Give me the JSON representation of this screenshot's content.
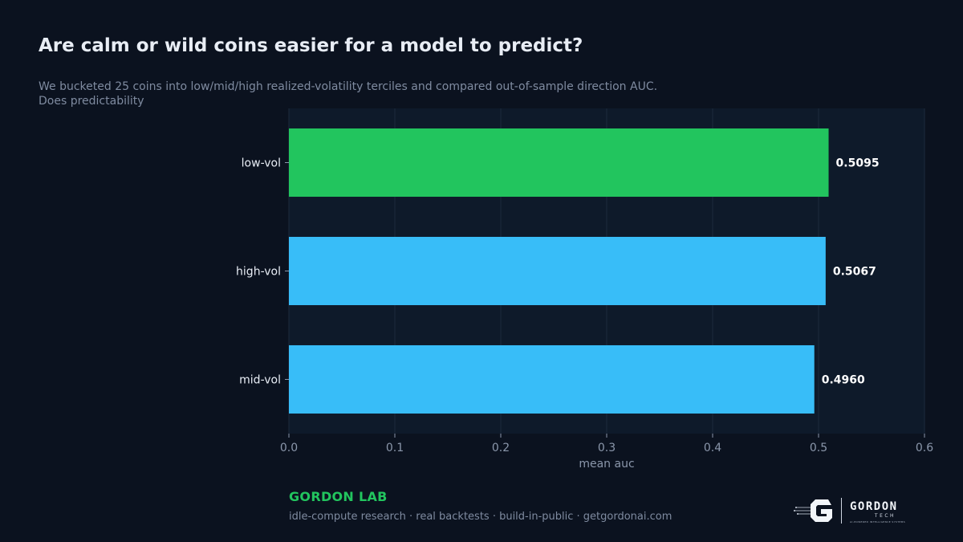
{
  "header": {
    "title": "Are calm or wild coins easier for a model to predict?",
    "subtitle_line1": "We bucketed 25 coins into low/mid/high realized-volatility terciles and compared out-of-sample direction AUC.",
    "subtitle_line2": "Does predictability"
  },
  "chart_data": {
    "type": "bar",
    "orientation": "horizontal",
    "categories": [
      "low-vol",
      "high-vol",
      "mid-vol"
    ],
    "values": [
      0.5095,
      0.5067,
      0.496
    ],
    "value_labels": [
      "0.5095",
      "0.5067",
      "0.4960"
    ],
    "bar_colors": [
      "#22c55e",
      "#38bdf8",
      "#38bdf8"
    ],
    "xlabel": "mean auc",
    "ylabel": "",
    "xlim": [
      0,
      0.6
    ],
    "xticks": [
      0.0,
      0.1,
      0.2,
      0.3,
      0.4,
      0.5,
      0.6
    ],
    "xtick_labels": [
      "0.0",
      "0.1",
      "0.2",
      "0.3",
      "0.4",
      "0.5",
      "0.6"
    ],
    "grid": true,
    "colors": {
      "plot_bg": "#0e1a2a",
      "grid": "#1c2a3c",
      "tick_text": "#8b97ab",
      "category_text": "#e8edf5",
      "value_text": "#ffffff"
    }
  },
  "footer": {
    "brand": "GORDON LAB",
    "tagline": "idle-compute research · real backtests · build-in-public · getgordonai.com",
    "logo_word": "GORDON",
    "logo_sub": "TECH",
    "logo_tiny": "AI-POWERED INTELLIGENCE SYSTEMS"
  },
  "colors": {
    "background": "#0b121f",
    "accent": "#22c55e"
  }
}
